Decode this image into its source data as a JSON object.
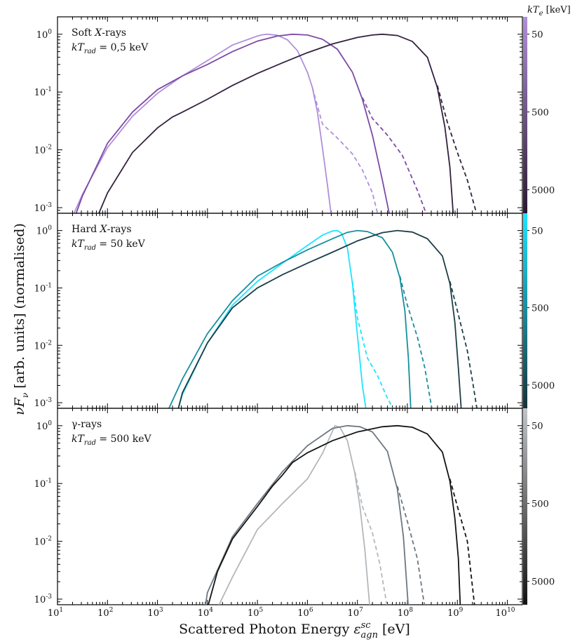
{
  "chart_data": {
    "type": "line",
    "xlabel": "Scattered Photon Energy ε_agn^sc [eV]",
    "ylabel": "νF_ν  [arb. units]   (normalised)",
    "x_scale": "log",
    "y_scale": "log",
    "xlim": [
      10,
      20000000000
    ],
    "ylim": [
      0.0008,
      2
    ],
    "x_tick_exponents": [
      1,
      2,
      3,
      4,
      5,
      6,
      7,
      8,
      9,
      10
    ],
    "y_tick_exponents": [
      0,
      -1,
      -2,
      -3
    ],
    "tick_base": "10",
    "colorbar": {
      "label": "kT_e [keV]",
      "ticks": [
        "50",
        "500",
        "5000"
      ],
      "scale": "log",
      "range": [
        30,
        10000
      ]
    },
    "panels": [
      {
        "name": "soft-x-rays",
        "label_line1": "Soft X-rays",
        "label_line2": "kT_rad = 0,5 keV",
        "colormap": [
          "#b18fd9",
          "#2a1830"
        ],
        "series": [
          {
            "kTe": "50",
            "color": "#b18fd9",
            "solid": [
              [
                1.3,
                0.0007
              ],
              [
                1.5,
                0.0017
              ],
              [
                2,
                0.011
              ],
              [
                2.5,
                0.038
              ],
              [
                3,
                0.095
              ],
              [
                3.5,
                0.19
              ],
              [
                4,
                0.35
              ],
              [
                4.5,
                0.65
              ],
              [
                5,
                0.93
              ],
              [
                5.1,
                0.98
              ],
              [
                5.2,
                1.0
              ],
              [
                5.4,
                0.96
              ],
              [
                5.6,
                0.8
              ],
              [
                5.8,
                0.52
              ],
              [
                6,
                0.22
              ],
              [
                6.1,
                0.12
              ],
              [
                6.2,
                0.045
              ],
              [
                6.3,
                0.011
              ],
              [
                6.4,
                0.0025
              ],
              [
                6.48,
                0.0007
              ]
            ],
            "dashed": [
              [
                6.1,
                0.12
              ],
              [
                6.3,
                0.028
              ],
              [
                6.6,
                0.016
              ],
              [
                6.9,
                0.0085
              ],
              [
                7.1,
                0.0045
              ],
              [
                7.3,
                0.0018
              ],
              [
                7.42,
                0.0007
              ]
            ]
          },
          {
            "kTe": "500",
            "color": "#7d4aa6",
            "solid": [
              [
                1.35,
                0.0007
              ],
              [
                1.5,
                0.0016
              ],
              [
                2,
                0.013
              ],
              [
                2.5,
                0.045
              ],
              [
                3,
                0.11
              ],
              [
                3.5,
                0.19
              ],
              [
                4,
                0.3
              ],
              [
                4.5,
                0.5
              ],
              [
                5,
                0.76
              ],
              [
                5.4,
                0.93
              ],
              [
                5.7,
                1.0
              ],
              [
                6,
                0.97
              ],
              [
                6.3,
                0.82
              ],
              [
                6.6,
                0.55
              ],
              [
                6.9,
                0.22
              ],
              [
                7.1,
                0.075
              ],
              [
                7.3,
                0.018
              ],
              [
                7.5,
                0.003
              ],
              [
                7.65,
                0.0007
              ]
            ],
            "dashed": [
              [
                7.1,
                0.08
              ],
              [
                7.3,
                0.035
              ],
              [
                7.6,
                0.018
              ],
              [
                7.9,
                0.008
              ],
              [
                8.2,
                0.002
              ],
              [
                8.4,
                0.0007
              ]
            ]
          },
          {
            "kTe": "5000",
            "color": "#33213f",
            "solid": [
              [
                1.8,
                0.0007
              ],
              [
                2,
                0.0018
              ],
              [
                2.5,
                0.009
              ],
              [
                3,
                0.024
              ],
              [
                3.3,
                0.037
              ],
              [
                3.5,
                0.045
              ],
              [
                4,
                0.075
              ],
              [
                4.5,
                0.13
              ],
              [
                5,
                0.21
              ],
              [
                5.5,
                0.32
              ],
              [
                6,
                0.48
              ],
              [
                6.5,
                0.68
              ],
              [
                7,
                0.88
              ],
              [
                7.3,
                0.97
              ],
              [
                7.5,
                1.0
              ],
              [
                7.8,
                0.95
              ],
              [
                8.1,
                0.75
              ],
              [
                8.4,
                0.4
              ],
              [
                8.6,
                0.12
              ],
              [
                8.75,
                0.025
              ],
              [
                8.85,
                0.005
              ],
              [
                8.92,
                0.0007
              ]
            ],
            "dashed": [
              [
                8.6,
                0.13
              ],
              [
                8.8,
                0.03
              ],
              [
                9,
                0.009
              ],
              [
                9.2,
                0.003
              ],
              [
                9.4,
                0.0007
              ]
            ]
          }
        ]
      },
      {
        "name": "hard-x-rays",
        "label_line1": "Hard X-rays",
        "label_line2": "kT_rad = 50 keV",
        "colormap": [
          "#1ee4ff",
          "#16323a"
        ],
        "series": [
          {
            "kTe": "50",
            "color": "#1ee4ff",
            "solid": [
              [
                3.4,
                0.0007
              ],
              [
                3.5,
                0.0014
              ],
              [
                4,
                0.011
              ],
              [
                4.5,
                0.05
              ],
              [
                5,
                0.13
              ],
              [
                5.5,
                0.27
              ],
              [
                6,
                0.55
              ],
              [
                6.3,
                0.83
              ],
              [
                6.5,
                0.98
              ],
              [
                6.6,
                1.0
              ],
              [
                6.68,
                0.9
              ],
              [
                6.8,
                0.5
              ],
              [
                6.9,
                0.12
              ],
              [
                7,
                0.015
              ],
              [
                7.1,
                0.002
              ],
              [
                7.18,
                0.0007
              ]
            ],
            "dashed": [
              [
                6.9,
                0.13
              ],
              [
                7,
                0.03
              ],
              [
                7.2,
                0.006
              ],
              [
                7.4,
                0.003
              ],
              [
                7.6,
                0.0012
              ],
              [
                7.75,
                0.0007
              ]
            ]
          },
          {
            "kTe": "500",
            "color": "#168e9e",
            "solid": [
              [
                3.2,
                0.0007
              ],
              [
                3.5,
                0.0026
              ],
              [
                4,
                0.016
              ],
              [
                4.5,
                0.06
              ],
              [
                5,
                0.16
              ],
              [
                5.5,
                0.28
              ],
              [
                6,
                0.46
              ],
              [
                6.5,
                0.72
              ],
              [
                6.8,
                0.93
              ],
              [
                7,
                1.0
              ],
              [
                7.2,
                0.96
              ],
              [
                7.5,
                0.75
              ],
              [
                7.7,
                0.42
              ],
              [
                7.85,
                0.15
              ],
              [
                7.95,
                0.04
              ],
              [
                8.02,
                0.006
              ],
              [
                8.07,
                0.0007
              ]
            ],
            "dashed": [
              [
                7.85,
                0.16
              ],
              [
                8,
                0.05
              ],
              [
                8.2,
                0.014
              ],
              [
                8.35,
                0.004
              ],
              [
                8.5,
                0.0007
              ]
            ]
          },
          {
            "kTe": "5000",
            "color": "#1c3e47",
            "solid": [
              [
                3.4,
                0.0007
              ],
              [
                3.5,
                0.0015
              ],
              [
                4,
                0.011
              ],
              [
                4.5,
                0.045
              ],
              [
                5,
                0.1
              ],
              [
                5.5,
                0.17
              ],
              [
                6,
                0.27
              ],
              [
                6.5,
                0.42
              ],
              [
                7,
                0.66
              ],
              [
                7.5,
                0.92
              ],
              [
                7.8,
                1.0
              ],
              [
                8.1,
                0.94
              ],
              [
                8.4,
                0.72
              ],
              [
                8.7,
                0.36
              ],
              [
                8.85,
                0.12
              ],
              [
                8.95,
                0.025
              ],
              [
                9.02,
                0.004
              ],
              [
                9.08,
                0.0007
              ]
            ],
            "dashed": [
              [
                8.85,
                0.13
              ],
              [
                9,
                0.04
              ],
              [
                9.2,
                0.008
              ],
              [
                9.3,
                0.0025
              ],
              [
                9.4,
                0.0007
              ]
            ]
          }
        ]
      },
      {
        "name": "gamma-rays",
        "label_line1": "γ-rays",
        "label_line2": "kT_rad = 500 keV",
        "colormap": [
          "#c2c5c8",
          "#121212"
        ],
        "series": [
          {
            "kTe": "50",
            "color": "#b3b8bc",
            "solid": [
              [
                4.2,
                0.0007
              ],
              [
                4.5,
                0.0024
              ],
              [
                5,
                0.016
              ],
              [
                5.5,
                0.045
              ],
              [
                6,
                0.12
              ],
              [
                6.3,
                0.33
              ],
              [
                6.5,
                0.8
              ],
              [
                6.55,
                1.0
              ],
              [
                6.65,
                0.94
              ],
              [
                6.8,
                0.55
              ],
              [
                6.95,
                0.15
              ],
              [
                7.05,
                0.04
              ],
              [
                7.15,
                0.007
              ],
              [
                7.25,
                0.0007
              ]
            ],
            "dashed": [
              [
                6.95,
                0.16
              ],
              [
                7.1,
                0.04
              ],
              [
                7.3,
                0.014
              ],
              [
                7.45,
                0.004
              ],
              [
                7.6,
                0.0007
              ]
            ]
          },
          {
            "kTe": "500",
            "color": "#6d7780",
            "solid": [
              [
                3.95,
                0.0007
              ],
              [
                4,
                0.0013
              ],
              [
                4.5,
                0.012
              ],
              [
                5,
                0.045
              ],
              [
                5.5,
                0.16
              ],
              [
                6,
                0.45
              ],
              [
                6.5,
                0.9
              ],
              [
                6.8,
                1.0
              ],
              [
                7.05,
                0.96
              ],
              [
                7.3,
                0.78
              ],
              [
                7.6,
                0.36
              ],
              [
                7.8,
                0.08
              ],
              [
                7.92,
                0.012
              ],
              [
                8.02,
                0.0007
              ]
            ],
            "dashed": [
              [
                7.8,
                0.09
              ],
              [
                8,
                0.022
              ],
              [
                8.2,
                0.005
              ],
              [
                8.35,
                0.0007
              ]
            ]
          },
          {
            "kTe": "5000",
            "color": "#141414",
            "solid": [
              [
                4,
                0.0007
              ],
              [
                4.2,
                0.003
              ],
              [
                4.5,
                0.011
              ],
              [
                5,
                0.04
              ],
              [
                5.3,
                0.09
              ],
              [
                5.5,
                0.14
              ],
              [
                5.7,
                0.23
              ],
              [
                6,
                0.34
              ],
              [
                6.5,
                0.55
              ],
              [
                7,
                0.78
              ],
              [
                7.5,
                0.96
              ],
              [
                7.8,
                1.0
              ],
              [
                8.1,
                0.94
              ],
              [
                8.4,
                0.72
              ],
              [
                8.7,
                0.35
              ],
              [
                8.85,
                0.11
              ],
              [
                8.95,
                0.025
              ],
              [
                9.02,
                0.005
              ],
              [
                9.06,
                0.0007
              ]
            ],
            "dashed": [
              [
                8.85,
                0.12
              ],
              [
                9,
                0.04
              ],
              [
                9.2,
                0.01
              ],
              [
                9.35,
                0.0007
              ]
            ]
          }
        ]
      }
    ]
  }
}
